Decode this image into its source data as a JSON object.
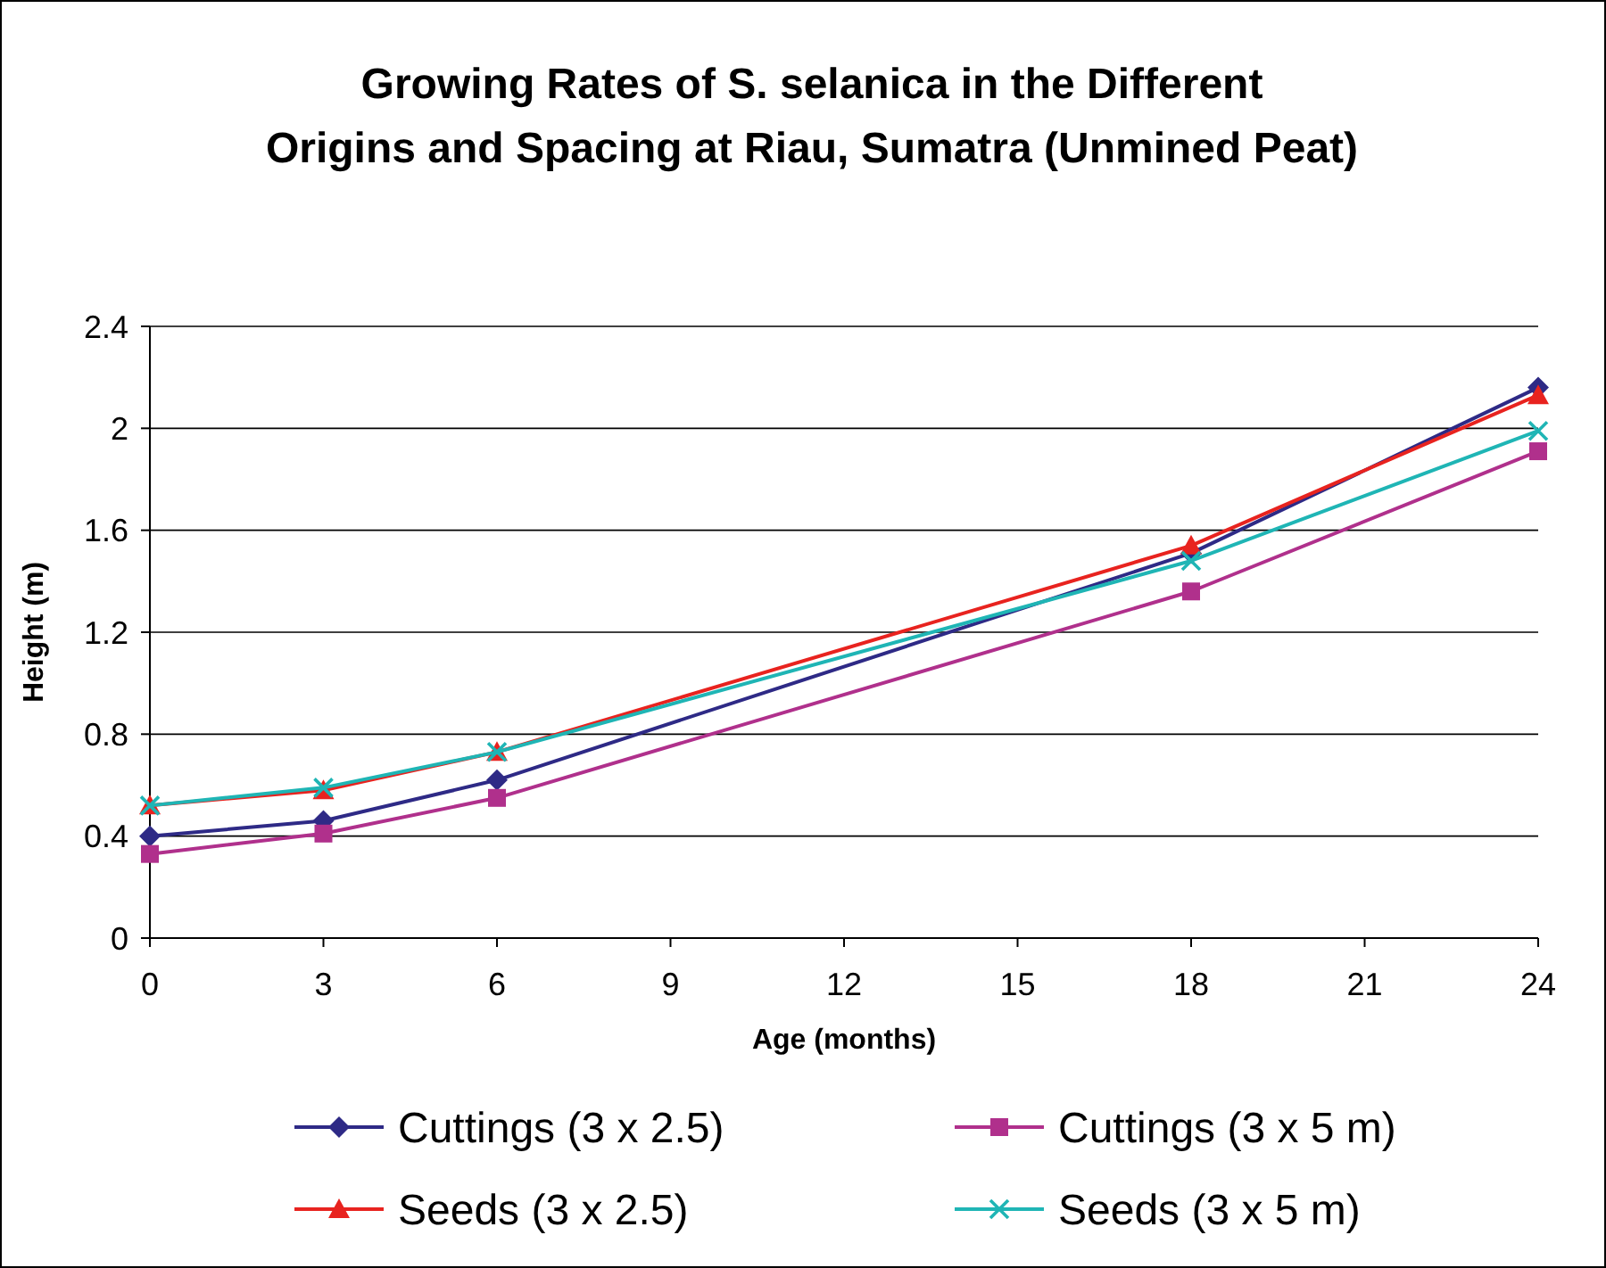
{
  "chart_data": {
    "type": "line",
    "title": "Growing Rates of S. selanica in the Different Origins and Spacing at Riau, Sumatra (Unmined Peat)",
    "xlabel": "Age (months)",
    "ylabel": "Height (m)",
    "x": [
      0,
      3,
      6,
      18,
      24
    ],
    "xlim": [
      0,
      24
    ],
    "xticks": [
      0,
      3,
      6,
      9,
      12,
      15,
      18,
      21,
      24
    ],
    "ylim": [
      0,
      2.4
    ],
    "yticks": [
      0,
      0.4,
      0.8,
      1.2,
      1.6,
      2,
      2.4
    ],
    "grid": "y",
    "legend": "bottom",
    "series": [
      {
        "name": "Cuttings (3 x 2.5)",
        "color": "#2e2a86",
        "marker": "diamond",
        "values": [
          0.4,
          0.46,
          0.62,
          1.51,
          2.16
        ]
      },
      {
        "name": "Cuttings (3 x 5 m)",
        "color": "#b0308c",
        "marker": "square",
        "values": [
          0.33,
          0.41,
          0.55,
          1.36,
          1.91
        ]
      },
      {
        "name": "Seeds (3 x 2.5)",
        "color": "#e8231f",
        "marker": "triangle",
        "values": [
          0.52,
          0.58,
          0.73,
          1.54,
          2.13
        ]
      },
      {
        "name": "Seeds (3 x 5 m)",
        "color": "#1fb5b5",
        "marker": "cross",
        "values": [
          0.52,
          0.59,
          0.73,
          1.48,
          1.99
        ]
      }
    ]
  }
}
